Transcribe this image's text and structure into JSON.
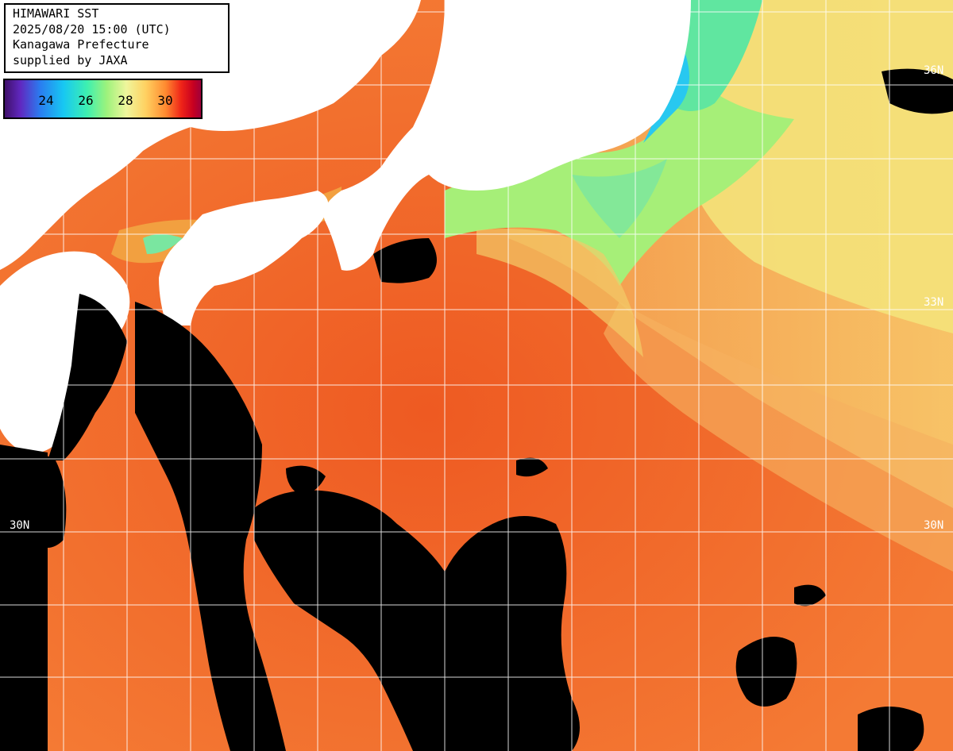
{
  "info": {
    "title": "HIMAWARI SST",
    "datetime": "2025/08/20 15:00 (UTC)",
    "region": "Kanagawa Prefecture",
    "credit": "supplied by JAXA"
  },
  "legend": {
    "ticks": [
      "24",
      "26",
      "28",
      "30"
    ]
  },
  "map": {
    "lat_labels": [
      "36N",
      "33N",
      "30N",
      "30N"
    ],
    "colors": {
      "land": "#ffffff",
      "cloud_mask": "#000000",
      "grid": "#ffffff",
      "warm_water": "#f07030",
      "cool_water": "#a6ef78",
      "cold_core": "#28c8f0"
    }
  }
}
